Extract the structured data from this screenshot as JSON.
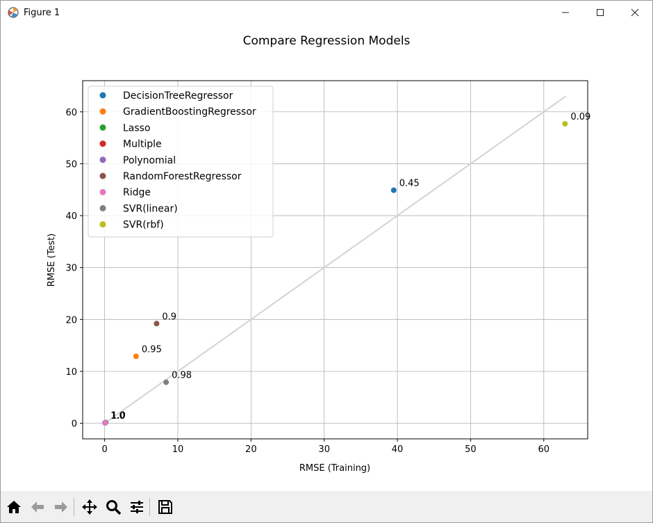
{
  "window": {
    "title": "Figure 1",
    "icon": "matplotlib-figure-icon",
    "controls": [
      "minimize-icon",
      "maximize-icon",
      "close-icon"
    ]
  },
  "toolbar": {
    "buttons": [
      "home-icon",
      "back-arrow-icon",
      "forward-arrow-icon",
      "pan-icon",
      "zoom-icon",
      "configure-subplots-icon",
      "save-icon"
    ]
  },
  "chart_data": {
    "type": "scatter",
    "title": "Compare Regression Models",
    "xlabel": "RMSE (Training)",
    "ylabel": "RMSE (Test)",
    "xlim": [
      -3,
      66
    ],
    "ylim": [
      -3,
      66
    ],
    "xticks": [
      0,
      10,
      20,
      30,
      40,
      50,
      60
    ],
    "yticks": [
      0,
      10,
      20,
      30,
      40,
      50,
      60
    ],
    "grid": true,
    "legend_position": "upper-left",
    "reference_line": {
      "x": [
        0,
        63
      ],
      "y": [
        0,
        63
      ],
      "color": "#d3d3d3"
    },
    "series": [
      {
        "name": "DecisionTreeRegressor",
        "color": "#1f77b4",
        "x": 39.5,
        "y": 44.9,
        "label": "0.45"
      },
      {
        "name": "GradientBoostingRegressor",
        "color": "#ff7f0e",
        "x": 4.3,
        "y": 12.9,
        "label": "0.95"
      },
      {
        "name": "Lasso",
        "color": "#2ca02c",
        "x": 0.15,
        "y": 0.15,
        "label": "1.0"
      },
      {
        "name": "Multiple",
        "color": "#d62728",
        "x": 0.1,
        "y": 0.1,
        "label": "1.0"
      },
      {
        "name": "Polynomial",
        "color": "#9467bd",
        "x": 0.05,
        "y": 0.1,
        "label": "1.0"
      },
      {
        "name": "RandomForestRegressor",
        "color": "#8c564b",
        "x": 7.1,
        "y": 19.2,
        "label": "0.9"
      },
      {
        "name": "Ridge",
        "color": "#e377c2",
        "x": 0.1,
        "y": 0.1,
        "label": "1.0"
      },
      {
        "name": "SVR(linear)",
        "color": "#7f7f7f",
        "x": 8.4,
        "y": 7.9,
        "label": "0.98"
      },
      {
        "name": "SVR(rbf)",
        "color": "#bcbd22",
        "x": 62.9,
        "y": 57.7,
        "label": "0.09"
      }
    ]
  }
}
